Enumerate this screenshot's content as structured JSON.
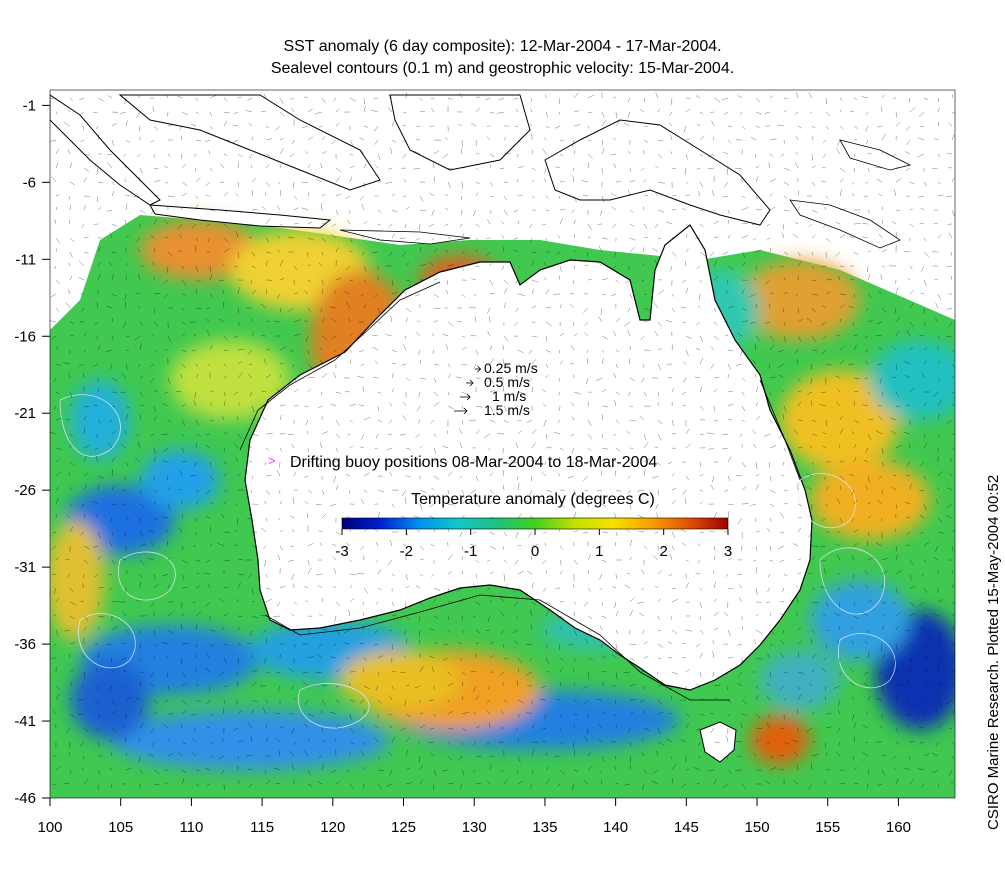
{
  "title_line1": "SST anomaly (6 day composite): 12-Mar-2004 - 17-Mar-2004.",
  "title_line2": "Sealevel contours (0.1 m) and geostrophic velocity: 15-Mar-2004.",
  "credit": "CSIRO Marine Research. Plotted 15-May-2004 00:52",
  "axes": {
    "x_ticks": [
      "100",
      "105",
      "110",
      "115",
      "120",
      "125",
      "130",
      "135",
      "140",
      "145",
      "150",
      "155",
      "160"
    ],
    "y_ticks": [
      "-1",
      "-6",
      "-11",
      "-16",
      "-21",
      "-26",
      "-31",
      "-36",
      "-41",
      "-46"
    ],
    "lon_range": [
      100,
      164
    ],
    "lat_range": [
      -46,
      0
    ]
  },
  "velocity_legend": [
    {
      "label": "0.25 m/s",
      "speed": 0.25
    },
    {
      "label": "0.5 m/s",
      "speed": 0.5
    },
    {
      "label": "1 m/s",
      "speed": 1
    },
    {
      "label": "1.5 m/s",
      "speed": 1.5
    }
  ],
  "buoy_legend": "Drifting buoy positions 08-Mar-2004 to 18-Mar-2004",
  "buoy_color": "#e040e0",
  "colorbar": {
    "title": "Temperature anomaly (degrees C)",
    "ticks": [
      "-3",
      "-2",
      "-1",
      "0",
      "1",
      "2",
      "3"
    ],
    "range": [
      -3,
      3
    ],
    "colors": [
      "#00007a",
      "#0020d0",
      "#0090f0",
      "#10c8c8",
      "#20c080",
      "#40d020",
      "#c0e000",
      "#f8e000",
      "#f8a000",
      "#e05000",
      "#a00000"
    ]
  }
}
